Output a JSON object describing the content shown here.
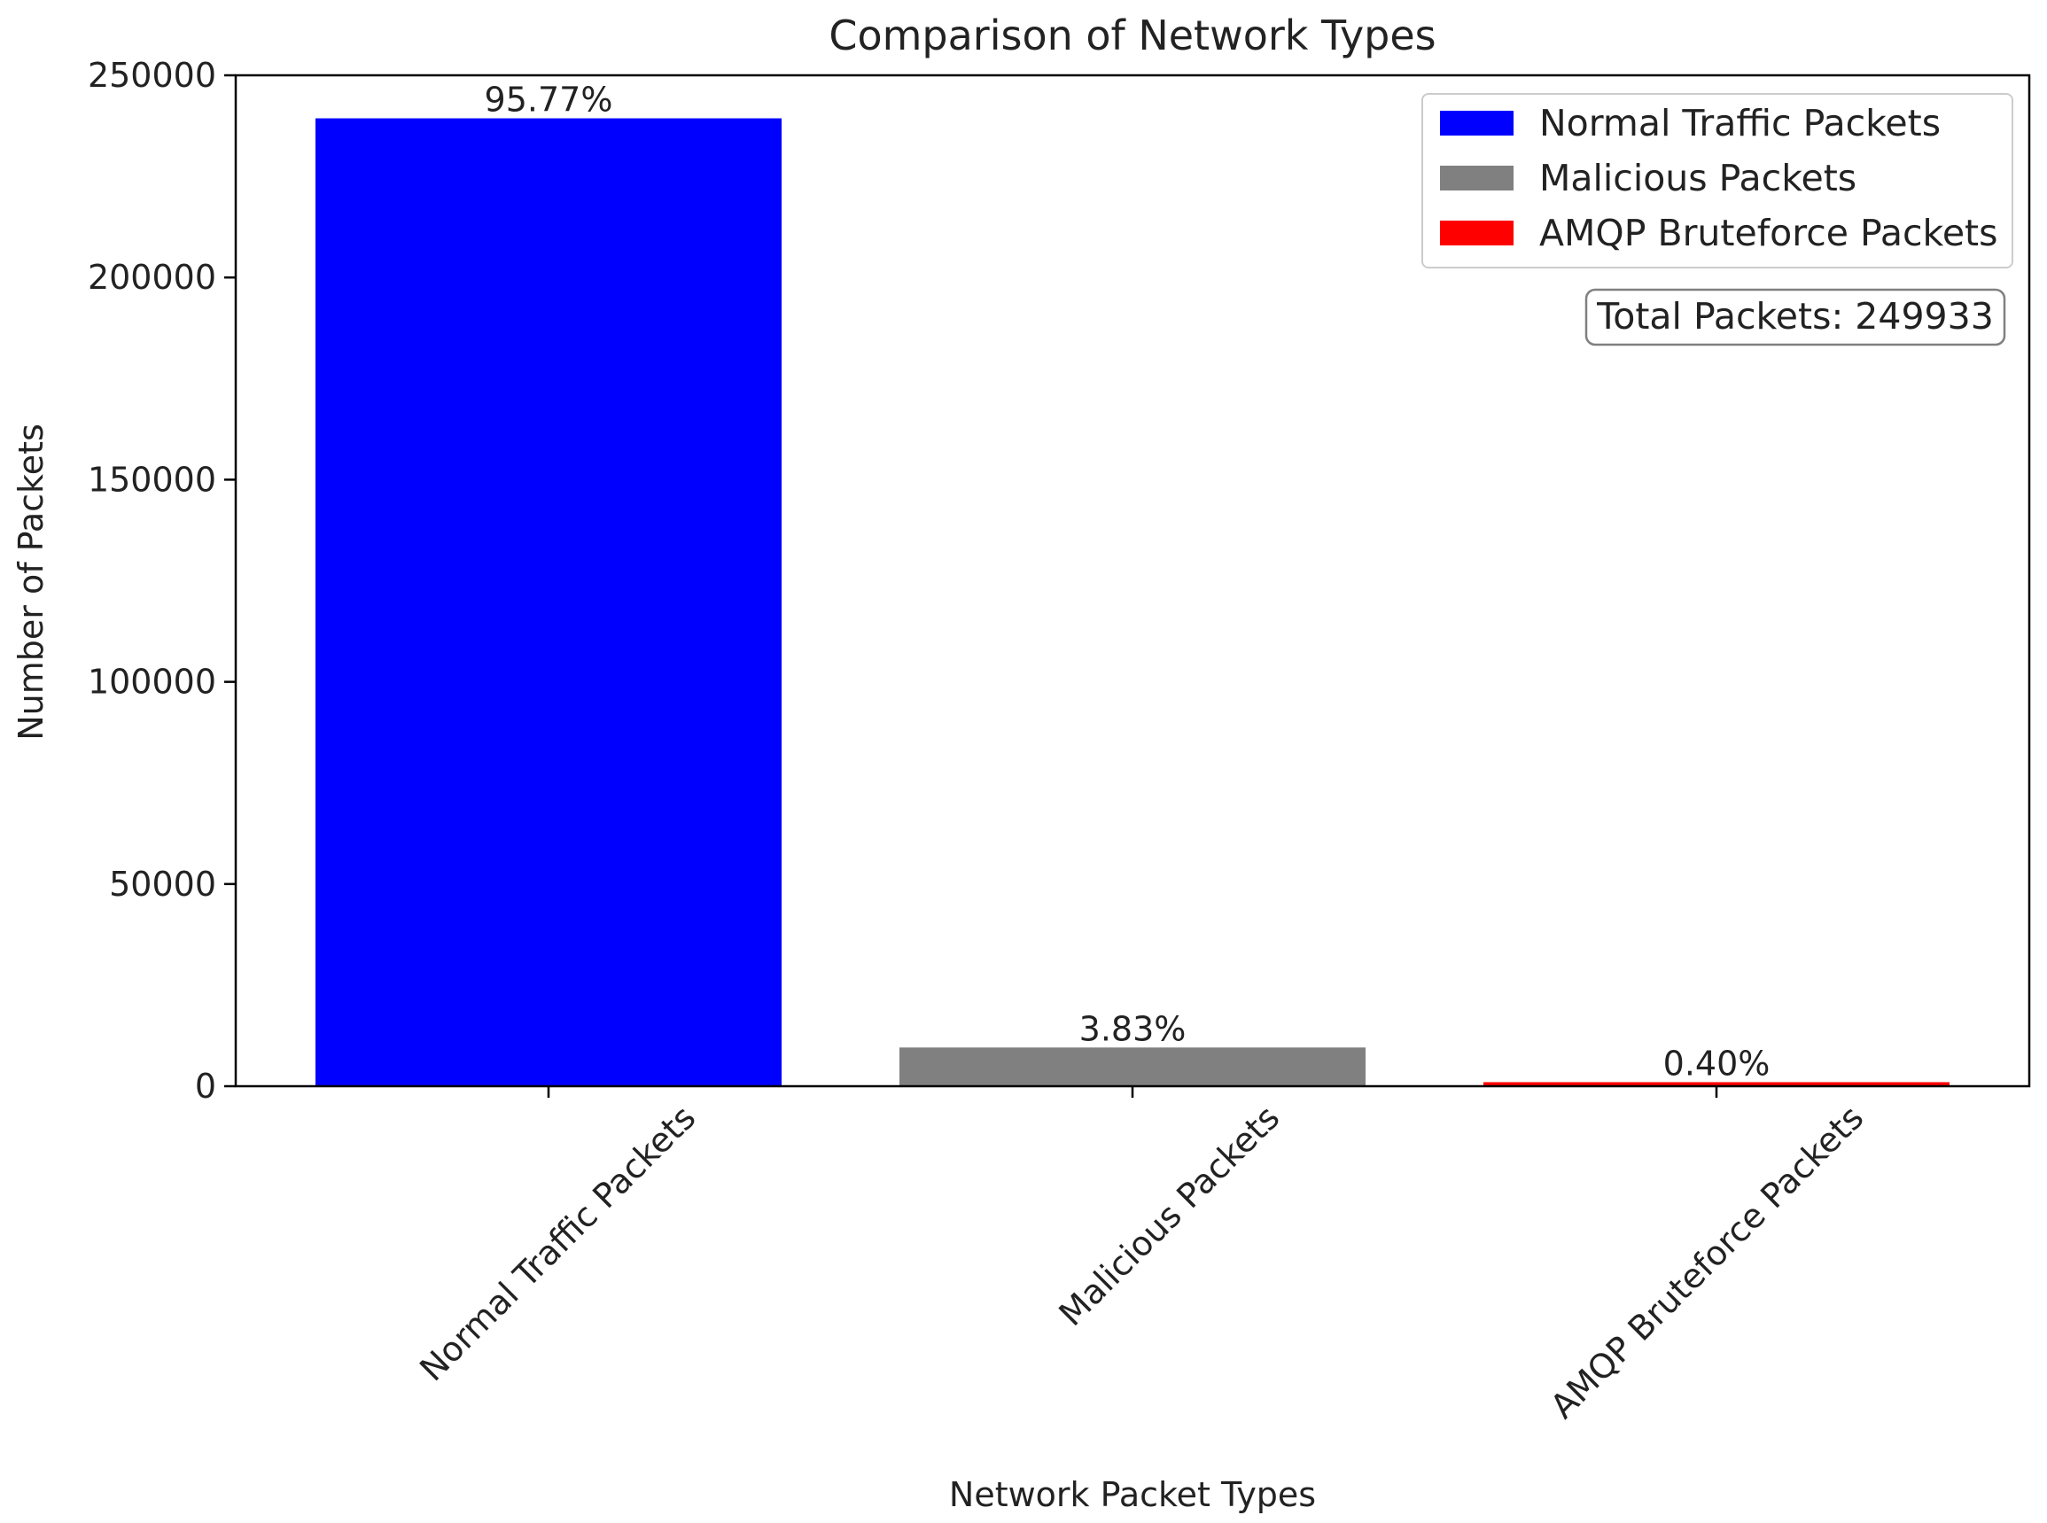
{
  "chart_data": {
    "type": "bar",
    "title": "Comparison of Network Types",
    "xlabel": "Network Packet Types",
    "ylabel": "Number of Packets",
    "categories": [
      "Normal Traffic Packets",
      "Malicious Packets",
      "AMQP Bruteforce Packets"
    ],
    "values": [
      239360,
      9573,
      1000
    ],
    "value_labels": [
      "95.77%",
      "3.83%",
      "0.40%"
    ],
    "colors": [
      "#0000ff",
      "#808080",
      "#ff0000"
    ],
    "ylim": [
      0,
      250000
    ],
    "yticks": [
      0,
      50000,
      100000,
      150000,
      200000,
      250000
    ],
    "ytick_labels": [
      "0",
      "50000",
      "100000",
      "150000",
      "200000",
      "250000"
    ],
    "legend": {
      "position": "top-right",
      "entries": [
        "Normal Traffic Packets",
        "Malicious Packets",
        "AMQP Bruteforce Packets"
      ]
    },
    "annotation": "Total Packets: 249933",
    "grid": false
  }
}
